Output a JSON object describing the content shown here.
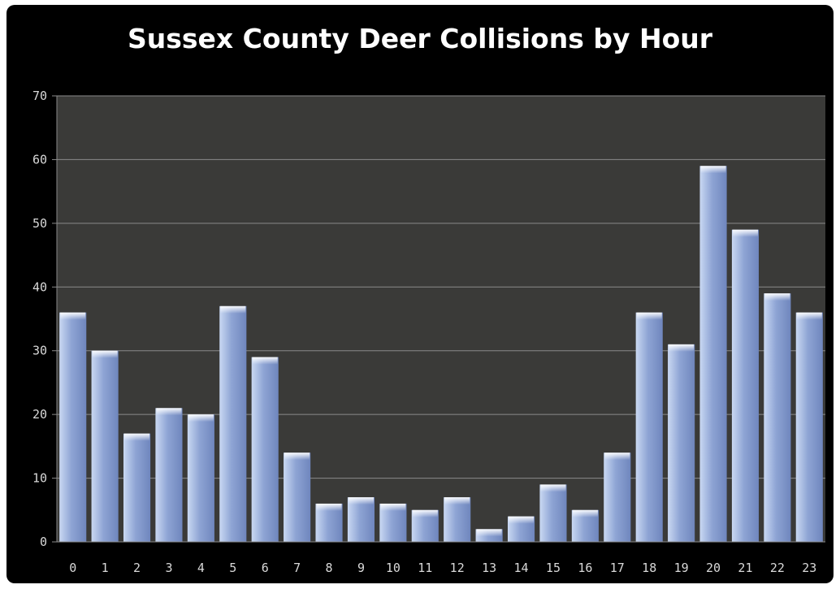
{
  "chart_data": {
    "type": "bar",
    "title": "Sussex County Deer Collisions by Hour",
    "xlabel": "",
    "ylabel": "",
    "categories": [
      "0",
      "1",
      "2",
      "3",
      "4",
      "5",
      "6",
      "7",
      "8",
      "9",
      "10",
      "11",
      "12",
      "13",
      "14",
      "15",
      "16",
      "17",
      "18",
      "19",
      "20",
      "21",
      "22",
      "23"
    ],
    "values": [
      36,
      30,
      17,
      21,
      20,
      37,
      29,
      14,
      6,
      7,
      6,
      5,
      7,
      2,
      4,
      9,
      5,
      14,
      36,
      31,
      59,
      49,
      39,
      36
    ],
    "ylim": [
      0,
      70
    ],
    "yticks": [
      0,
      10,
      20,
      30,
      40,
      50,
      60,
      70
    ],
    "grid": true,
    "legend": "none",
    "colors": {
      "frame_background": "#000000",
      "plot_background": "#3a3a38",
      "bar_top": "#c9d8f2",
      "bar_mid": "#8ea4d4",
      "bar_bottom": "#6f86bd",
      "gridline": "#8a8a8a",
      "text": "#d9d9d9"
    }
  }
}
